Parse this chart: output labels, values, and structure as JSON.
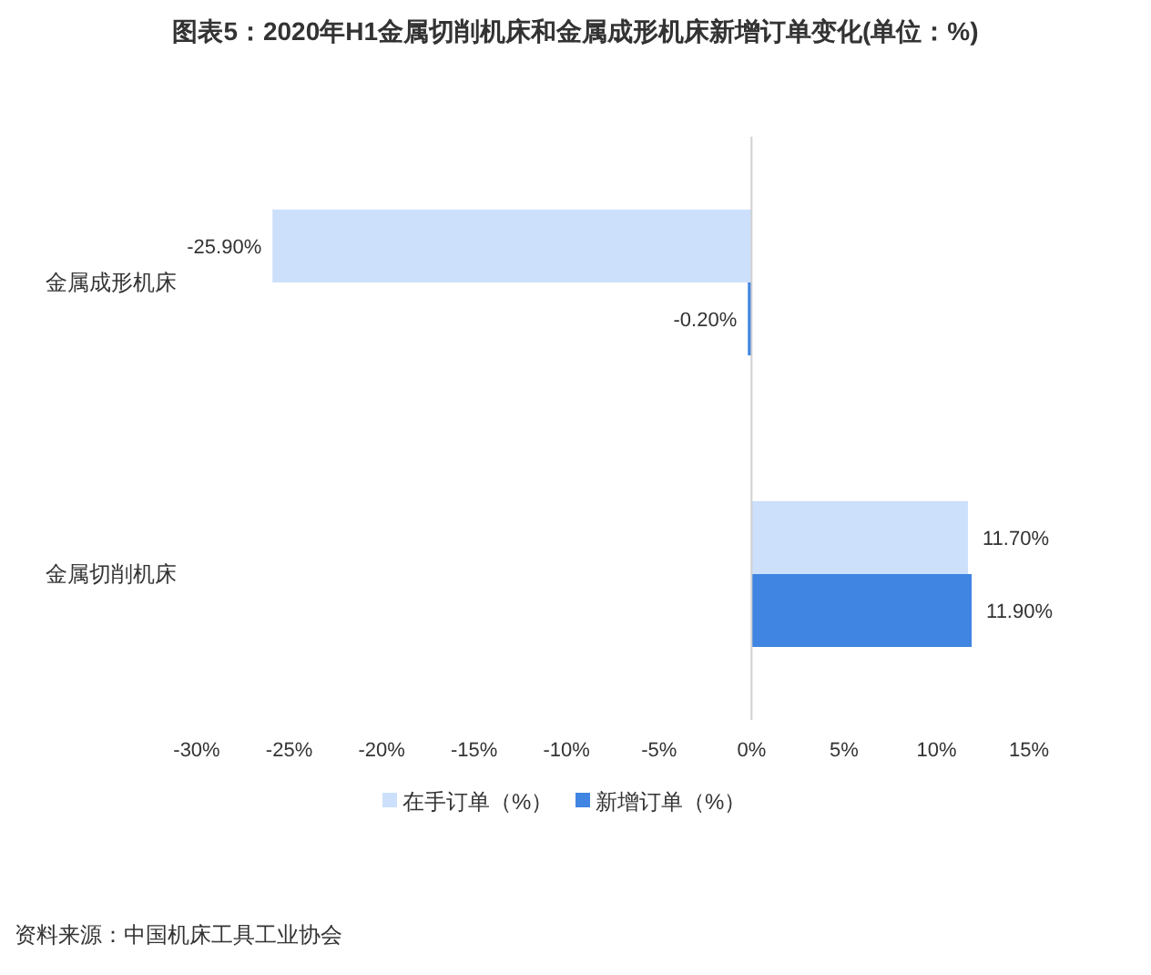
{
  "chart_data": {
    "type": "bar",
    "orientation": "horizontal",
    "title": "图表5：2020年H1金属切削机床和金属成形机床新增订单变化(单位：%)",
    "categories": [
      "金属成形机床",
      "金属切削机床"
    ],
    "series": [
      {
        "name": "在手订单（%）",
        "color": "#cce0fb",
        "values": [
          -25.9,
          11.7
        ],
        "value_labels": [
          "-25.90%",
          "11.70%"
        ]
      },
      {
        "name": "新增订单（%）",
        "color": "#3f85e1",
        "values": [
          -0.2,
          11.9
        ],
        "value_labels": [
          "-0.20%",
          "11.90%"
        ]
      }
    ],
    "xlim": [
      -30,
      15
    ],
    "xticks": [
      {
        "value": -30,
        "label": "-30%"
      },
      {
        "value": -25,
        "label": "-25%"
      },
      {
        "value": -20,
        "label": "-20%"
      },
      {
        "value": -15,
        "label": "-15%"
      },
      {
        "value": -10,
        "label": "-10%"
      },
      {
        "value": -5,
        "label": "-5%"
      },
      {
        "value": 0,
        "label": "0%"
      },
      {
        "value": 5,
        "label": "5%"
      },
      {
        "value": 10,
        "label": "10%"
      },
      {
        "value": 15,
        "label": "15%"
      }
    ],
    "legend": "bottom",
    "annotations": [
      "资料来源：中国机床工具工业协会"
    ]
  }
}
